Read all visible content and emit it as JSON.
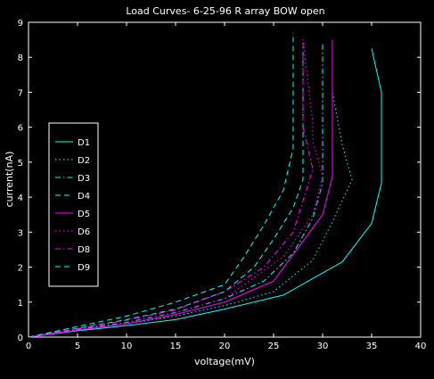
{
  "chart_data": {
    "type": "line",
    "title": "Load Curves- 6-25-96 R array BOW open",
    "xlabel": "voltage(mV)",
    "ylabel": "current(nA)",
    "xlim": [
      0,
      40
    ],
    "ylim": [
      0,
      9
    ],
    "xticks": [
      "0",
      "5",
      "10",
      "15",
      "20",
      "25",
      "30",
      "35",
      "40"
    ],
    "yticks": [
      "0",
      "1",
      "2",
      "3",
      "4",
      "5",
      "6",
      "7",
      "8",
      "9"
    ],
    "grid": false,
    "legend_position": "left",
    "series": [
      {
        "name": "D1",
        "color": "#00ffff",
        "dash": "solid",
        "x": [
          0,
          5,
          10,
          15,
          20,
          26,
          32,
          35,
          36,
          36,
          36,
          35
        ],
        "y": [
          0,
          0.18,
          0.33,
          0.5,
          0.8,
          1.2,
          2.15,
          3.25,
          4.4,
          5.6,
          7.0,
          8.25
        ]
      },
      {
        "name": "D2",
        "color": "#00ffff",
        "dash": "dotted",
        "x": [
          0,
          5,
          10,
          15,
          20,
          25,
          29,
          31,
          33,
          32,
          31,
          31
        ],
        "y": [
          0,
          0.2,
          0.38,
          0.6,
          0.9,
          1.3,
          2.2,
          3.3,
          4.5,
          5.5,
          7.0,
          8.5
        ]
      },
      {
        "name": "D3",
        "color": "#00ffff",
        "dash": "dashdot",
        "x": [
          0,
          5,
          10,
          15,
          20,
          24,
          27,
          29,
          30,
          30,
          30,
          30
        ],
        "y": [
          0,
          0.22,
          0.42,
          0.7,
          1.1,
          1.6,
          2.4,
          3.4,
          4.4,
          5.5,
          7.0,
          8.4
        ]
      },
      {
        "name": "D4",
        "color": "#00ffff",
        "dash": "dashed",
        "x": [
          0,
          5,
          10,
          15,
          20,
          23,
          25,
          27,
          28,
          28,
          28,
          28
        ],
        "y": [
          0,
          0.25,
          0.5,
          0.8,
          1.3,
          2.0,
          2.8,
          3.7,
          4.5,
          5.5,
          7.0,
          8.5
        ]
      },
      {
        "name": "D5",
        "color": "#ff00ff",
        "dash": "solid",
        "x": [
          0,
          5,
          10,
          15,
          20,
          25,
          30,
          31,
          31,
          31,
          31,
          31
        ],
        "y": [
          0,
          0.2,
          0.38,
          0.65,
          1.0,
          1.6,
          3.5,
          4.6,
          6.1,
          7.0,
          8.0,
          8.5
        ]
      },
      {
        "name": "D6",
        "color": "#ff00ff",
        "dash": "dotted",
        "x": [
          0,
          5,
          10,
          15,
          20,
          26,
          29,
          30,
          29,
          29,
          28
        ],
        "y": [
          0,
          0.22,
          0.42,
          0.7,
          1.1,
          2.3,
          3.5,
          4.6,
          5.6,
          6.1,
          8.5
        ]
      },
      {
        "name": "D8",
        "color": "#ff00ff",
        "dash": "dashdot",
        "x": [
          0,
          5,
          10,
          15,
          20,
          24,
          27,
          29,
          28,
          28,
          28
        ],
        "y": [
          0,
          0.24,
          0.48,
          0.78,
          1.3,
          2.0,
          3.0,
          4.8,
          6.0,
          7.0,
          8.6
        ]
      },
      {
        "name": "D9",
        "color": "#00ffff",
        "dash": "dashed",
        "x": [
          0,
          5,
          10,
          15,
          20,
          22,
          24,
          26,
          27,
          27,
          27,
          27
        ],
        "y": [
          0,
          0.3,
          0.6,
          1.0,
          1.5,
          2.3,
          3.2,
          4.2,
          5.4,
          6.6,
          7.2,
          8.7
        ]
      }
    ]
  }
}
